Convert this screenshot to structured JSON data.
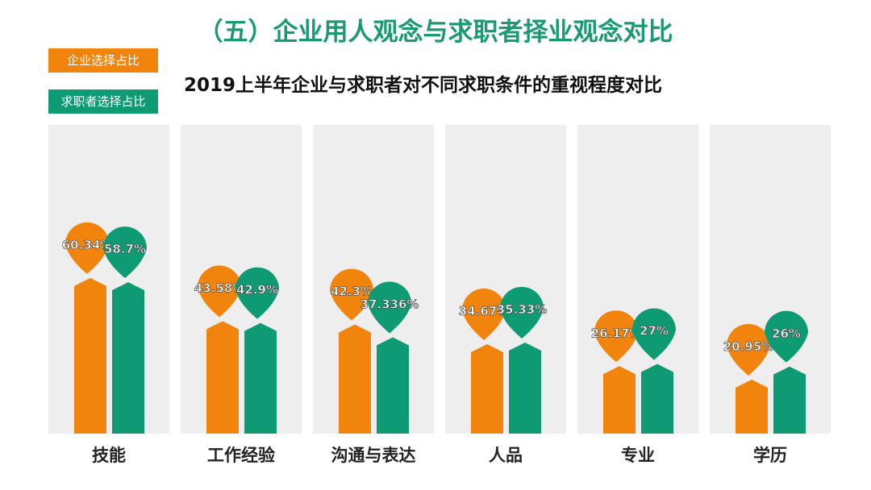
{
  "header": {
    "section_title": "（五）企业用人观念与求职者择业观念对比"
  },
  "colors": {
    "enterprise": "#f0840c",
    "seeker": "#0e9b74",
    "panel": "#eeeeee"
  },
  "chart_data": {
    "type": "bar",
    "title": "2019上半年企业与求职者对不同求职条件的重视程度对比",
    "legend_placement": "top-left",
    "ylim": [
      0,
      100
    ],
    "categories": [
      "技能",
      "工作经验",
      "沟通与表达",
      "人品",
      "专业",
      "学历"
    ],
    "series": [
      {
        "name": "企业选择占比",
        "values": [
          60.34,
          43.58,
          42.3,
          34.67,
          26.17,
          20.95
        ],
        "labels": [
          "60.34%",
          "43.58%",
          "42.3%",
          "34.67%",
          "26.17%",
          "20.95%"
        ]
      },
      {
        "name": "求职者选择占比",
        "values": [
          58.7,
          42.9,
          37.336,
          35.33,
          27,
          26
        ],
        "labels": [
          "58.7%",
          "42.9%",
          "37.336%",
          "35.33%",
          "27%",
          "26%"
        ]
      }
    ]
  }
}
